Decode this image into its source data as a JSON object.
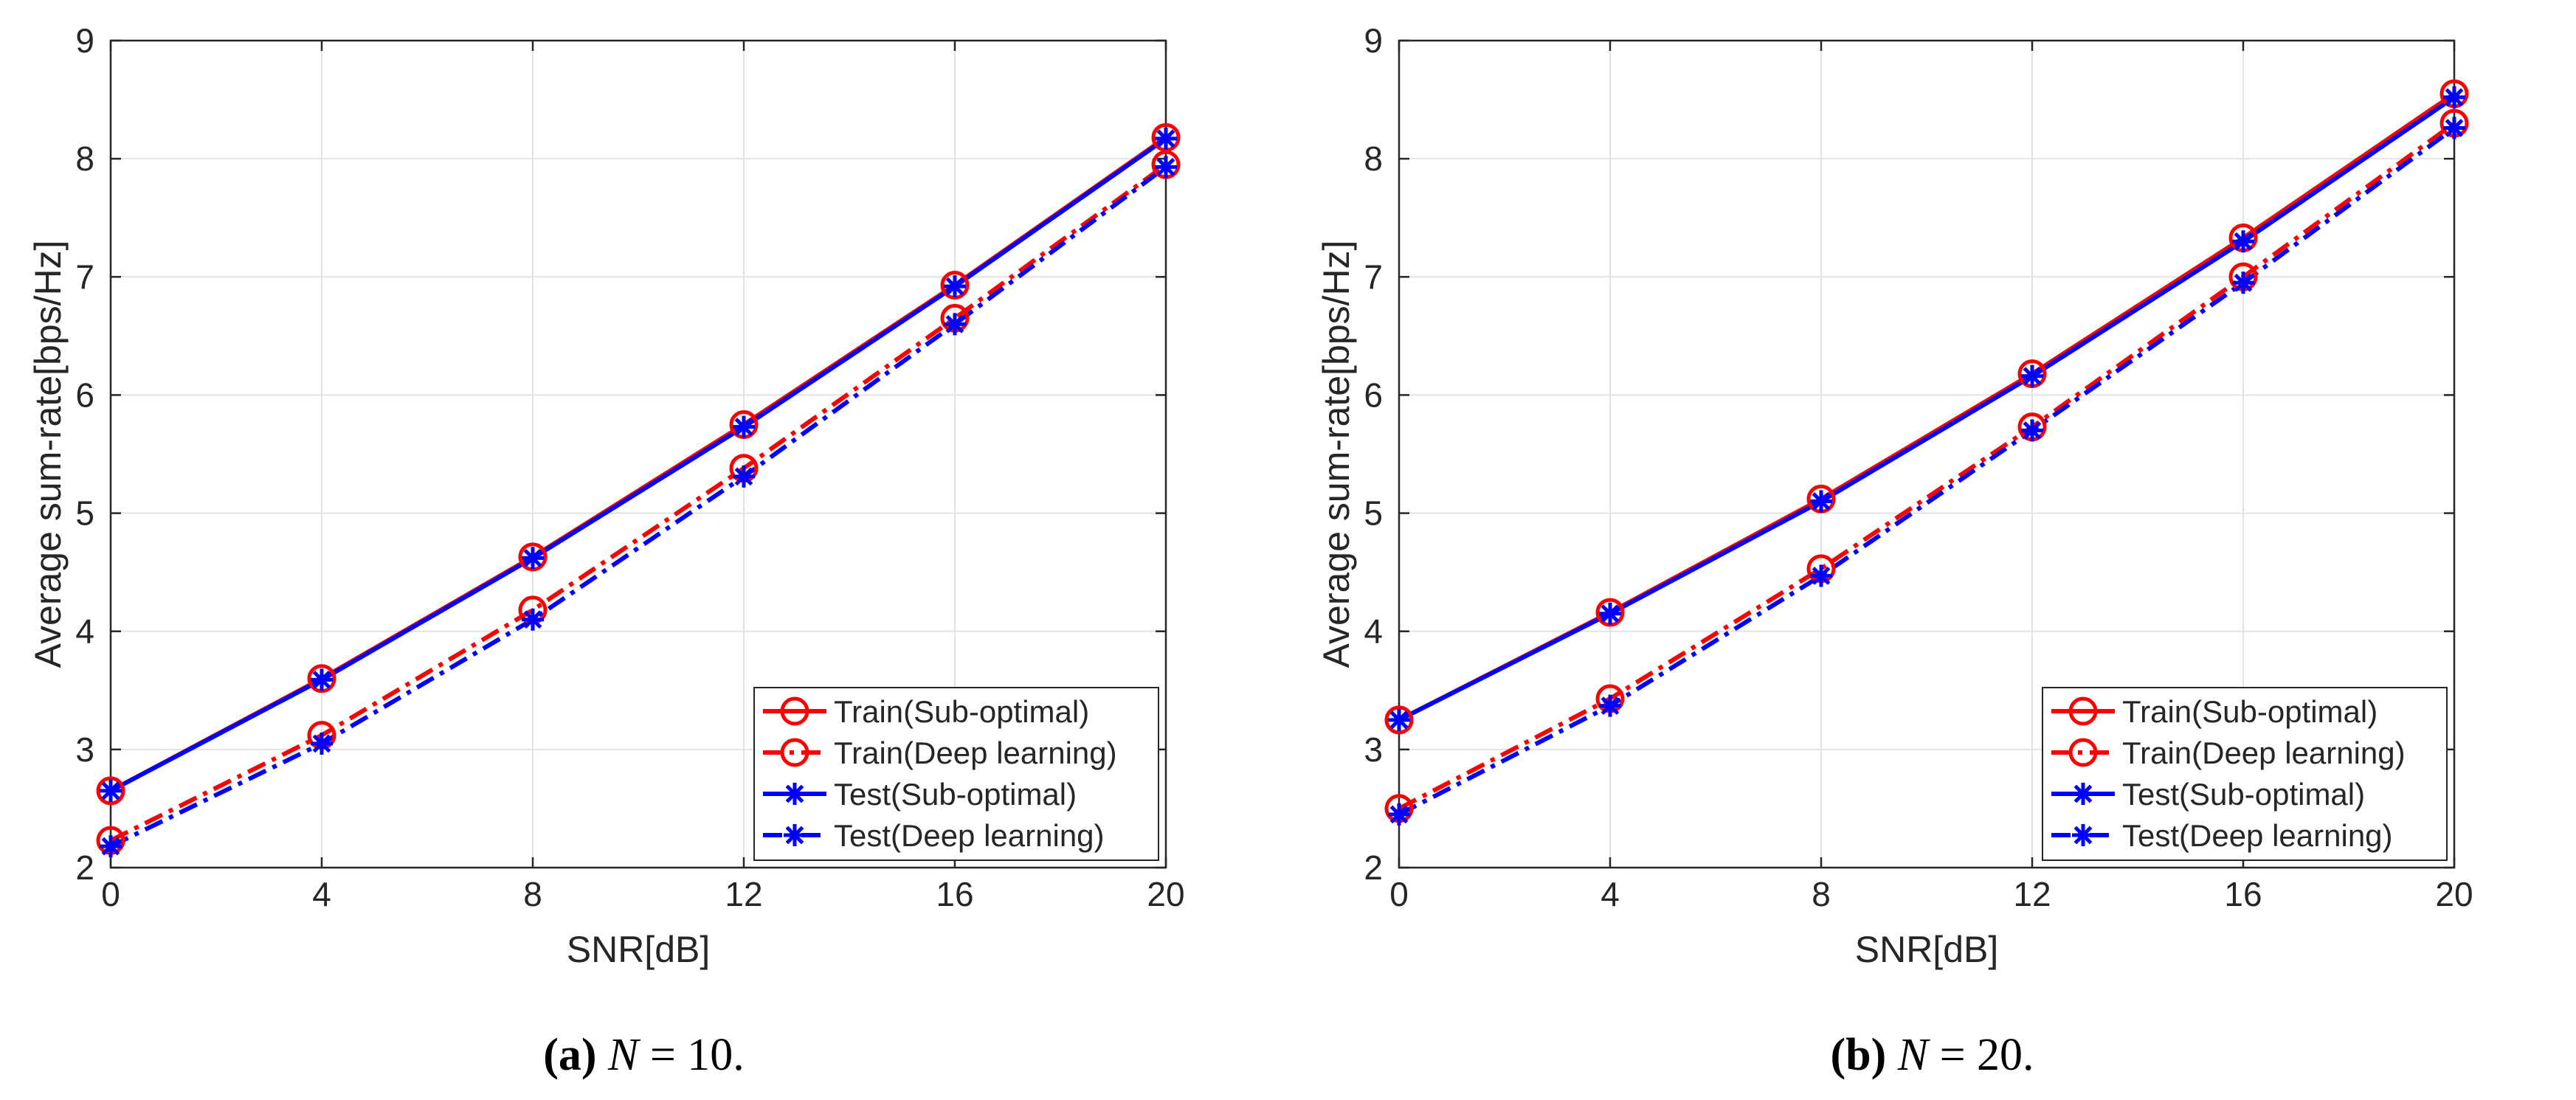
{
  "chart_data": [
    {
      "type": "line",
      "panel": "a",
      "caption_label": "(a)",
      "caption_var": "N",
      "caption_rest": " = 10.",
      "xlabel": "SNR[dB]",
      "ylabel": "Average sum-rate[bps/Hz]",
      "x": [
        0,
        4,
        8,
        12,
        16,
        20
      ],
      "xticks": [
        "0",
        "4",
        "8",
        "12",
        "16",
        "20"
      ],
      "yticks": [
        "2",
        "3",
        "4",
        "5",
        "6",
        "7",
        "8",
        "9"
      ],
      "xlim": [
        0,
        20
      ],
      "ylim": [
        2,
        9
      ],
      "grid": true,
      "legend_position": "bottom-right",
      "series": [
        {
          "name": "Train(Sub-optimal)",
          "color": "#ff0000",
          "dash": "solid",
          "marker": "circle",
          "values": [
            2.65,
            3.6,
            4.63,
            5.75,
            6.93,
            8.18
          ]
        },
        {
          "name": "Train(Deep learning)",
          "color": "#ff0000",
          "dash": "dashdot",
          "marker": "circle",
          "values": [
            2.23,
            3.12,
            4.18,
            5.38,
            6.65,
            7.95
          ]
        },
        {
          "name": "Test(Sub-optimal)",
          "color": "#0000ff",
          "dash": "solid",
          "marker": "star",
          "values": [
            2.65,
            3.59,
            4.62,
            5.73,
            6.92,
            8.17
          ]
        },
        {
          "name": "Test(Deep learning)",
          "color": "#0000ff",
          "dash": "dashdot",
          "marker": "star",
          "values": [
            2.18,
            3.05,
            4.1,
            5.31,
            6.6,
            7.93
          ]
        }
      ]
    },
    {
      "type": "line",
      "panel": "b",
      "caption_label": "(b)",
      "caption_var": "N",
      "caption_rest": " = 20.",
      "xlabel": "SNR[dB]",
      "ylabel": "Average sum-rate[bps/Hz]",
      "x": [
        0,
        4,
        8,
        12,
        16,
        20
      ],
      "xticks": [
        "0",
        "4",
        "8",
        "12",
        "16",
        "20"
      ],
      "yticks": [
        "2",
        "3",
        "4",
        "5",
        "6",
        "7",
        "8",
        "9"
      ],
      "xlim": [
        0,
        20
      ],
      "ylim": [
        2,
        9
      ],
      "grid": true,
      "legend_position": "bottom-right",
      "series": [
        {
          "name": "Train(Sub-optimal)",
          "color": "#ff0000",
          "dash": "solid",
          "marker": "circle",
          "values": [
            3.25,
            4.16,
            5.12,
            6.18,
            7.33,
            8.55
          ]
        },
        {
          "name": "Train(Deep learning)",
          "color": "#ff0000",
          "dash": "dashdot",
          "marker": "circle",
          "values": [
            2.5,
            3.43,
            4.53,
            5.73,
            7.0,
            8.3
          ]
        },
        {
          "name": "Test(Sub-optimal)",
          "color": "#0000ff",
          "dash": "solid",
          "marker": "star",
          "values": [
            3.25,
            4.15,
            5.1,
            6.16,
            7.3,
            8.52
          ]
        },
        {
          "name": "Test(Deep learning)",
          "color": "#0000ff",
          "dash": "dashdot",
          "marker": "star",
          "values": [
            2.45,
            3.37,
            4.47,
            5.7,
            6.95,
            8.26
          ]
        }
      ]
    }
  ]
}
